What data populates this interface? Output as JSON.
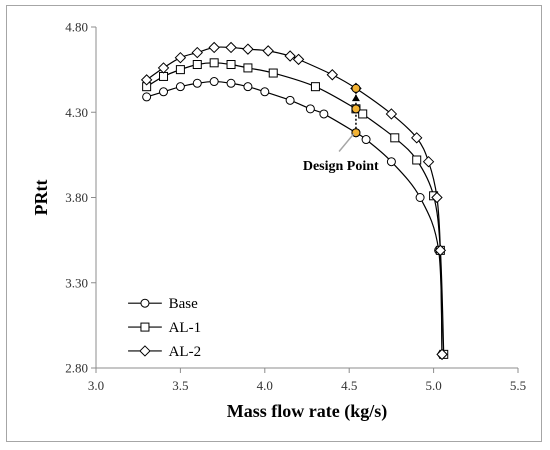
{
  "chart_data": {
    "type": "line",
    "xlabel": "Mass flow rate (kg/s)",
    "ylabel": "PRtt",
    "xlim": [
      3.0,
      5.5
    ],
    "ylim": [
      2.8,
      4.8
    ],
    "x_ticks": [
      "3.0",
      "3.5",
      "4.0",
      "4.5",
      "5.0",
      "5.5"
    ],
    "y_ticks": [
      "2.80",
      "3.30",
      "3.80",
      "4.30",
      "4.80"
    ],
    "grid": false,
    "legend_position": "bottom-left",
    "series": [
      {
        "name": "Base",
        "marker": "circle",
        "points": [
          [
            3.3,
            4.39
          ],
          [
            3.4,
            4.42
          ],
          [
            3.5,
            4.45
          ],
          [
            3.6,
            4.47
          ],
          [
            3.7,
            4.48
          ],
          [
            3.8,
            4.47
          ],
          [
            3.9,
            4.45
          ],
          [
            4.0,
            4.42
          ],
          [
            4.15,
            4.37
          ],
          [
            4.27,
            4.32
          ],
          [
            4.35,
            4.29
          ],
          [
            4.54,
            4.18
          ],
          [
            4.6,
            4.14
          ],
          [
            4.75,
            4.01
          ],
          [
            4.92,
            3.8
          ],
          [
            5.03,
            3.49
          ],
          [
            5.05,
            2.88
          ]
        ]
      },
      {
        "name": "AL-1",
        "marker": "square",
        "points": [
          [
            3.3,
            4.45
          ],
          [
            3.4,
            4.51
          ],
          [
            3.5,
            4.55
          ],
          [
            3.6,
            4.58
          ],
          [
            3.7,
            4.59
          ],
          [
            3.8,
            4.58
          ],
          [
            3.9,
            4.56
          ],
          [
            4.05,
            4.53
          ],
          [
            4.3,
            4.45
          ],
          [
            4.54,
            4.32
          ],
          [
            4.58,
            4.29
          ],
          [
            4.77,
            4.15
          ],
          [
            4.9,
            4.02
          ],
          [
            5.0,
            3.81
          ],
          [
            5.04,
            3.49
          ],
          [
            5.06,
            2.88
          ]
        ]
      },
      {
        "name": "AL-2",
        "marker": "diamond",
        "points": [
          [
            3.3,
            4.49
          ],
          [
            3.4,
            4.56
          ],
          [
            3.5,
            4.62
          ],
          [
            3.6,
            4.65
          ],
          [
            3.7,
            4.68
          ],
          [
            3.8,
            4.68
          ],
          [
            3.9,
            4.67
          ],
          [
            4.02,
            4.66
          ],
          [
            4.15,
            4.63
          ],
          [
            4.2,
            4.61
          ],
          [
            4.4,
            4.52
          ],
          [
            4.54,
            4.44
          ],
          [
            4.75,
            4.29
          ],
          [
            4.9,
            4.15
          ],
          [
            4.97,
            4.01
          ],
          [
            5.02,
            3.8
          ],
          [
            5.04,
            3.49
          ],
          [
            5.05,
            2.88
          ]
        ]
      }
    ],
    "design_point": {
      "label": "Design Point",
      "x": 4.54,
      "points_y": [
        4.18,
        4.32,
        4.44
      ],
      "marker_color": "#f2b233",
      "arrow_y": [
        4.35,
        4.41
      ]
    },
    "colors": {
      "line": "#000000",
      "marker_fill": "#ffffff",
      "axis": "#8c8c8c",
      "annotation_arrow": "#a6a6a6"
    }
  }
}
